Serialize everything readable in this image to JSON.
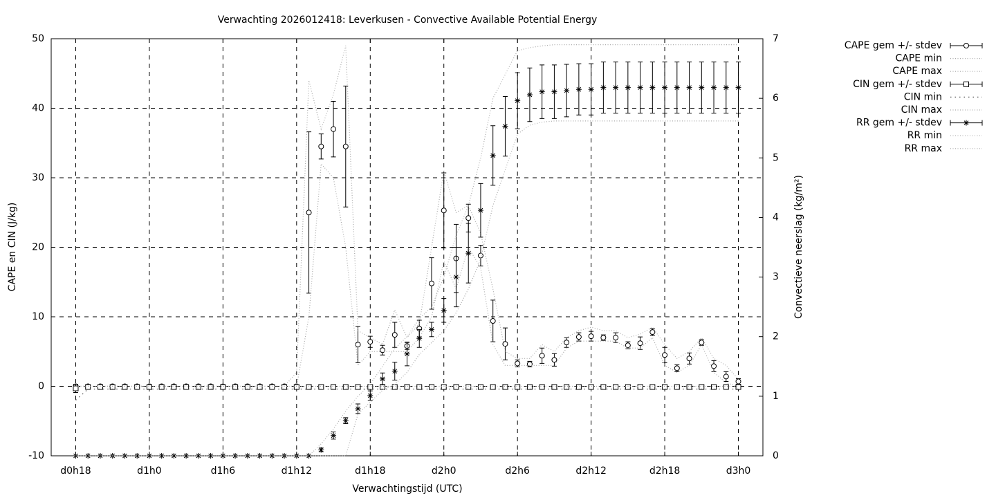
{
  "chart_data": {
    "type": "errorbar-line",
    "title": "Verwachting 2026012418: Leverkusen - Convective Available Potential Energy",
    "xlabel": "Verwachtingstijd (UTC)",
    "ylabel": "CAPE en CIN (J/kg)",
    "y2label": "Convectieve neerslag (kg/m²)",
    "grid": true,
    "legend": "outside-right",
    "xlim": [
      16,
      74
    ],
    "xticks": [
      {
        "value": 18,
        "label": "d0h18"
      },
      {
        "value": 24,
        "label": "d1h0"
      },
      {
        "value": 30,
        "label": "d1h6"
      },
      {
        "value": 36,
        "label": "d1h12"
      },
      {
        "value": 42,
        "label": "d1h18"
      },
      {
        "value": 48,
        "label": "d2h0"
      },
      {
        "value": 54,
        "label": "d2h6"
      },
      {
        "value": 60,
        "label": "d2h12"
      },
      {
        "value": 66,
        "label": "d2h18"
      },
      {
        "value": 72,
        "label": "d3h0"
      }
    ],
    "ylim": [
      -10,
      50
    ],
    "yticks": [
      -10,
      0,
      10,
      20,
      30,
      40,
      50
    ],
    "y2lim": [
      0,
      7
    ],
    "y2ticks": [
      0,
      1,
      2,
      3,
      4,
      5,
      6,
      7
    ],
    "x": [
      18,
      19,
      20,
      21,
      22,
      23,
      24,
      25,
      26,
      27,
      28,
      29,
      30,
      31,
      32,
      33,
      34,
      35,
      36,
      37,
      38,
      39,
      40,
      41,
      42,
      43,
      44,
      45,
      46,
      47,
      48,
      49,
      50,
      51,
      52,
      53,
      54,
      55,
      56,
      57,
      58,
      59,
      60,
      61,
      62,
      63,
      64,
      65,
      66,
      67,
      68,
      69,
      70,
      71,
      72
    ],
    "series": [
      {
        "name": "CAPE gem +/- stdev",
        "color": "#000000",
        "marker": "circle",
        "axis": "y",
        "values": [
          0,
          0,
          0,
          0,
          0,
          0,
          0,
          0,
          0,
          0,
          0,
          0,
          0,
          0,
          0,
          0,
          0,
          0,
          0,
          25,
          34.5,
          37,
          34.5,
          6,
          6.4,
          5.2,
          7.4,
          5.8,
          8.3,
          14.8,
          25.3,
          18.4,
          24.2,
          18.8,
          9.4,
          6.1,
          3.3,
          3.2,
          4.4,
          3.8,
          6.3,
          7.1,
          7.2,
          7.0,
          7.0,
          5.9,
          6.2,
          7.8,
          4.5,
          2.6,
          4.0,
          6.3,
          2.9,
          1.4,
          0.7
        ],
        "errors": [
          0,
          0,
          0,
          0,
          0,
          0,
          0,
          0,
          0,
          0,
          0,
          0,
          0,
          0,
          0,
          0,
          0,
          0,
          0,
          11.6,
          1.8,
          4,
          8.7,
          2.6,
          0.8,
          0.7,
          1.8,
          0.5,
          1.2,
          3.7,
          5.4,
          4.9,
          2,
          1.5,
          3,
          2.3,
          0.5,
          0.4,
          1.1,
          0.9,
          0.7,
          0.6,
          0.7,
          0.4,
          0.7,
          0.5,
          0.9,
          0.5,
          1.1,
          0.5,
          0.8,
          0.4,
          0.8,
          0.7,
          0.4
        ]
      },
      {
        "name": "CAPE min",
        "color": "#aaaaaa",
        "line": "dotted",
        "axis": "y",
        "values": [
          0,
          0,
          0,
          0,
          0,
          0,
          0,
          0,
          0,
          0,
          0,
          0,
          0,
          0,
          0,
          0,
          0,
          0,
          0,
          10,
          32,
          30,
          20,
          3,
          5,
          5,
          5,
          5,
          7,
          10,
          18,
          14,
          20,
          17,
          6,
          3,
          3,
          3,
          3,
          3,
          5.5,
          6.5,
          6.5,
          6.5,
          6.5,
          5.5,
          5.5,
          7,
          3,
          2,
          3,
          6,
          2,
          0.5,
          0
        ]
      },
      {
        "name": "CAPE max",
        "color": "#aaaaaa",
        "line": "dotted",
        "axis": "y",
        "values": [
          0,
          0,
          0,
          0,
          0,
          0,
          0,
          0,
          0,
          0,
          0,
          0,
          0,
          0,
          0,
          0,
          0,
          0,
          2,
          44,
          37,
          42,
          49,
          8,
          7,
          6,
          11,
          7,
          9,
          20,
          31,
          25,
          26,
          22,
          14,
          5,
          4,
          4,
          6,
          5,
          7,
          8,
          8.5,
          8,
          8,
          7,
          7.5,
          8.5,
          6,
          4,
          5,
          7,
          4,
          3,
          1
        ]
      },
      {
        "name": "CIN gem +/- stdev",
        "color": "#000000",
        "marker": "square",
        "axis": "y",
        "values": [
          -0.3,
          -0.1,
          -0.1,
          -0.1,
          -0.1,
          -0.1,
          -0.1,
          -0.1,
          -0.1,
          -0.1,
          -0.1,
          -0.1,
          -0.1,
          -0.1,
          -0.1,
          -0.1,
          -0.1,
          -0.1,
          -0.1,
          -0.1,
          -0.1,
          -0.1,
          -0.1,
          -0.1,
          -0.1,
          -0.1,
          -0.1,
          -0.1,
          -0.1,
          -0.1,
          -0.1,
          -0.1,
          -0.1,
          -0.1,
          -0.1,
          -0.1,
          -0.1,
          -0.1,
          -0.1,
          -0.1,
          -0.1,
          -0.1,
          -0.1,
          -0.1,
          -0.1,
          -0.1,
          -0.1,
          -0.1,
          -0.1,
          -0.1,
          -0.1,
          -0.1,
          -0.1,
          -0.1,
          -0.1
        ],
        "errors": [
          0.6,
          0.2,
          0.2,
          0.2,
          0.2,
          0.2,
          0.2,
          0.2,
          0.2,
          0.2,
          0.2,
          0.2,
          0.2,
          0.2,
          0.2,
          0.2,
          0.2,
          0.2,
          0.2,
          0.2,
          0.2,
          0.2,
          0.2,
          0.2,
          0.2,
          0.2,
          0.2,
          0.2,
          0.2,
          0.2,
          0.2,
          0.2,
          0.2,
          0.2,
          0.2,
          0.2,
          0.2,
          0.2,
          0.2,
          0.2,
          0.2,
          0.2,
          0.2,
          0.2,
          0.2,
          0.2,
          0.2,
          0.2,
          0.2,
          0.2,
          0.2,
          0.2,
          0.2,
          0.2,
          0.2
        ]
      },
      {
        "name": "CIN min",
        "color": "#555555",
        "line": "dotted-sparse",
        "axis": "y",
        "values": [
          -2,
          -0.4,
          -0.4,
          -0.4,
          -0.4,
          -0.4,
          -0.4,
          -0.4,
          -0.4,
          -0.4,
          -0.4,
          -0.4,
          -0.4,
          -0.4,
          -0.4,
          -0.4,
          -0.4,
          -0.4,
          -0.4,
          -0.4,
          -0.4,
          -0.4,
          -0.4,
          -0.4,
          -0.4,
          -0.4,
          -0.4,
          -0.4,
          -0.4,
          -0.4,
          -0.4,
          -0.4,
          -0.4,
          -0.4,
          -0.4,
          -0.4,
          -0.4,
          -0.4,
          -0.4,
          -0.4,
          -0.4,
          -0.4,
          -0.4,
          -0.4,
          -0.4,
          -0.4,
          -0.4,
          -0.4,
          -0.4,
          -0.4,
          -0.4,
          -0.4,
          -0.4,
          -0.4,
          -0.4
        ]
      },
      {
        "name": "CIN max",
        "color": "#aaaaaa",
        "line": "dotted",
        "axis": "y",
        "values": [
          0,
          0,
          0,
          0,
          0,
          0,
          0,
          0,
          0,
          0,
          0,
          0,
          0,
          0,
          0,
          0,
          0,
          0,
          0,
          0,
          0,
          0,
          0,
          0,
          0,
          0,
          0,
          0,
          0,
          0,
          0,
          0,
          0,
          0,
          0,
          0,
          0,
          0,
          0,
          0,
          0,
          0,
          0,
          0,
          0,
          0,
          0,
          0,
          0,
          0,
          0,
          0,
          0,
          0,
          0
        ]
      },
      {
        "name": "RR gem +/- stdev",
        "color": "#000000",
        "marker": "star",
        "axis": "y2",
        "values": [
          0,
          0,
          0,
          0,
          0,
          0,
          0,
          0,
          0,
          0,
          0,
          0,
          0,
          0,
          0,
          0,
          0,
          0,
          0,
          0,
          0.1,
          0.34,
          0.59,
          0.79,
          1.01,
          1.29,
          1.42,
          1.71,
          1.97,
          2.12,
          2.44,
          3.0,
          3.4,
          4.12,
          5.04,
          5.53,
          5.96,
          6.06,
          6.11,
          6.11,
          6.13,
          6.15,
          6.15,
          6.18,
          6.18,
          6.18,
          6.18,
          6.18,
          6.18,
          6.18,
          6.18,
          6.18,
          6.18,
          6.18,
          6.18
        ],
        "errors": [
          0,
          0,
          0,
          0,
          0,
          0,
          0,
          0,
          0,
          0,
          0,
          0,
          0,
          0,
          0,
          0,
          0,
          0,
          0,
          0,
          0.03,
          0.06,
          0.05,
          0.08,
          0.08,
          0.1,
          0.15,
          0.2,
          0.15,
          0.12,
          0.2,
          0.5,
          0.5,
          0.45,
          0.5,
          0.5,
          0.47,
          0.45,
          0.45,
          0.45,
          0.44,
          0.43,
          0.43,
          0.43,
          0.43,
          0.43,
          0.43,
          0.43,
          0.43,
          0.43,
          0.43,
          0.43,
          0.43,
          0.43,
          0.43
        ]
      },
      {
        "name": "RR min",
        "color": "#aaaaaa",
        "line": "dotted",
        "axis": "y2",
        "values": [
          0,
          0,
          0,
          0,
          0,
          0,
          0,
          0,
          0,
          0,
          0,
          0,
          0,
          0,
          0,
          0,
          0,
          0,
          0,
          0,
          0,
          0,
          0,
          0.7,
          0.9,
          1.1,
          1.2,
          1.4,
          1.7,
          1.9,
          2.1,
          2.4,
          2.8,
          3.3,
          4.2,
          4.8,
          5.4,
          5.55,
          5.6,
          5.62,
          5.62,
          5.62,
          5.62,
          5.62,
          5.62,
          5.62,
          5.62,
          5.62,
          5.62,
          5.62,
          5.62,
          5.62,
          5.62,
          5.62,
          5.62
        ]
      },
      {
        "name": "RR max",
        "color": "#aaaaaa",
        "line": "dotted",
        "axis": "y2",
        "values": [
          0,
          0,
          0,
          0,
          0,
          0,
          0,
          0,
          0,
          0,
          0,
          0,
          0,
          0,
          0,
          0,
          0,
          0,
          0,
          0,
          0.2,
          0.45,
          0.75,
          1.0,
          1.2,
          1.5,
          1.8,
          2.0,
          2.3,
          2.5,
          3.0,
          3.7,
          4.2,
          5.0,
          6.0,
          6.4,
          6.8,
          6.85,
          6.88,
          6.9,
          6.9,
          6.9,
          6.9,
          6.9,
          6.9,
          6.9,
          6.9,
          6.9,
          6.9,
          6.9,
          6.9,
          6.9,
          6.9,
          6.9,
          6.9
        ]
      }
    ]
  }
}
